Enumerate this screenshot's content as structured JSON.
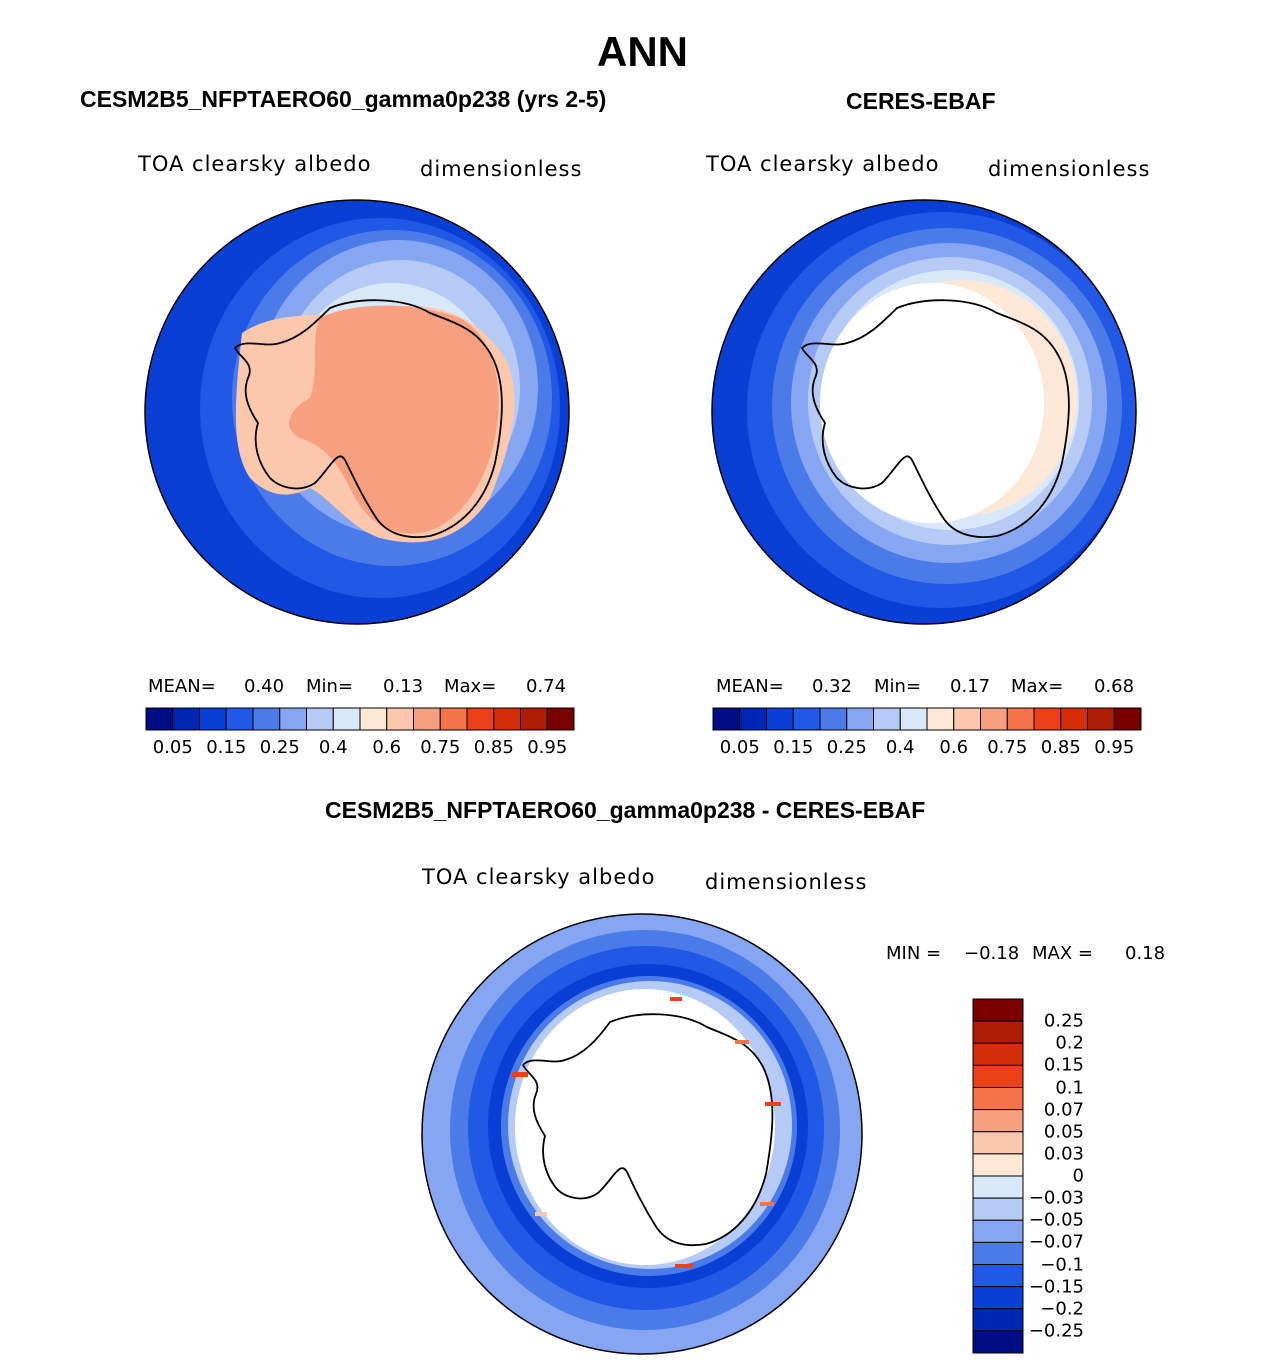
{
  "figure": {
    "title": "ANN",
    "panel1": {
      "title": "CESM2B5_NFPTAERO60_gamma0p238 (yrs 2-5)",
      "variable": "TOA clearsky albedo",
      "units": "dimensionless",
      "mean_label": "MEAN=",
      "mean": "0.40",
      "min_label": "Min=",
      "min": "0.13",
      "max_label": "Max=",
      "max": "0.74"
    },
    "panel2": {
      "title": "CERES-EBAF",
      "variable": "TOA clearsky albedo",
      "units": "dimensionless",
      "mean_label": "MEAN=",
      "mean": "0.32",
      "min_label": "Min=",
      "min": "0.17",
      "max_label": "Max=",
      "max": "0.68"
    },
    "panel3": {
      "title": "CESM2B5_NFPTAERO60_gamma0p238 - CERES-EBAF",
      "variable": "TOA clearsky albedo",
      "units": "dimensionless",
      "min_label": "MIN =",
      "min": "−0.18",
      "max_label": "MAX =",
      "max": "0.18"
    }
  },
  "chart_data": [
    {
      "type": "heatmap",
      "projection": "south-polar-stereographic",
      "title": "CESM2B5_NFPTAERO60_gamma0p238 (yrs 2-5)",
      "variable": "TOA clearsky albedo",
      "units": "dimensionless",
      "stats": {
        "mean": 0.4,
        "min": 0.13,
        "max": 0.74
      },
      "colorbar": {
        "orientation": "horizontal",
        "tick_labels": [
          "0.05",
          "0.15",
          "0.25",
          "0.4",
          "0.6",
          "0.75",
          "0.85",
          "0.95"
        ],
        "colors": [
          "#000e85",
          "#0027b3",
          "#0a3fd6",
          "#2158e6",
          "#4b7be8",
          "#86a6f2",
          "#b5cbf5",
          "#d8e8f9",
          "#fde8d8",
          "#fbc8ae",
          "#f6a080",
          "#f47348",
          "#ec4019",
          "#d42e08",
          "#ae1e06",
          "#7a0000"
        ]
      },
      "regions": [
        "open-ocean",
        "sea-ice-margin",
        "sea-ice",
        "antarctic-ice-sheet"
      ]
    },
    {
      "type": "heatmap",
      "projection": "south-polar-stereographic",
      "title": "CERES-EBAF",
      "variable": "TOA clearsky albedo",
      "units": "dimensionless",
      "stats": {
        "mean": 0.32,
        "min": 0.17,
        "max": 0.68
      },
      "colorbar": {
        "orientation": "horizontal",
        "tick_labels": [
          "0.05",
          "0.15",
          "0.25",
          "0.4",
          "0.6",
          "0.75",
          "0.85",
          "0.95"
        ],
        "colors": [
          "#000e85",
          "#0027b3",
          "#0a3fd6",
          "#2158e6",
          "#4b7be8",
          "#86a6f2",
          "#b5cbf5",
          "#d8e8f9",
          "#fde8d8",
          "#fbc8ae",
          "#f6a080",
          "#f47348",
          "#ec4019",
          "#d42e08",
          "#ae1e06",
          "#7a0000"
        ]
      },
      "regions": [
        "open-ocean",
        "sea-ice-margin",
        "missing-data-over-antarctica"
      ]
    },
    {
      "type": "heatmap",
      "projection": "south-polar-stereographic",
      "title": "CESM2B5_NFPTAERO60_gamma0p238 - CERES-EBAF",
      "variable": "TOA clearsky albedo",
      "units": "dimensionless",
      "stats": {
        "min": -0.18,
        "max": 0.18
      },
      "colorbar": {
        "orientation": "vertical",
        "tick_labels": [
          "0.25",
          "0.2",
          "0.15",
          "0.1",
          "0.07",
          "0.05",
          "0.03",
          "0",
          "−0.03",
          "−0.05",
          "−0.07",
          "−0.1",
          "−0.15",
          "−0.2",
          "−0.25"
        ],
        "colors": [
          "#7a0000",
          "#ae1e06",
          "#d42e08",
          "#ec4019",
          "#f47348",
          "#f6a080",
          "#fbc8ae",
          "#fde8d8",
          "#d8e8f9",
          "#b5cbf5",
          "#86a6f2",
          "#4b7be8",
          "#2158e6",
          "#0a3fd6",
          "#0027b3",
          "#000e85"
        ]
      },
      "regions": [
        "open-ocean-negative-bias",
        "ice-edge-positive-bias",
        "missing-data-over-antarctica"
      ]
    }
  ]
}
